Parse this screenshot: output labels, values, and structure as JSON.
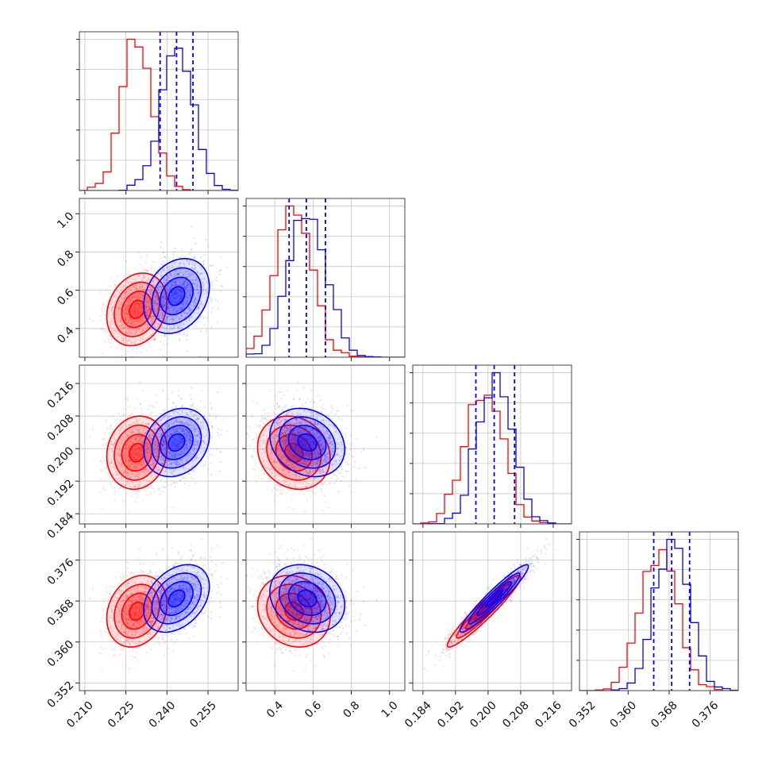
{
  "chart_data": {
    "type": "corner",
    "description_free": true,
    "parameters": [
      {
        "range": [
          0.208,
          0.266
        ],
        "ticks": [
          0.21,
          0.225,
          0.24,
          0.255
        ],
        "tick_labels": [
          "0.210",
          "0.225",
          "0.240",
          "0.255"
        ]
      },
      {
        "range": [
          0.25,
          1.08
        ],
        "ticks": [
          0.4,
          0.6,
          0.8,
          1.0
        ],
        "tick_labels": [
          "0.4",
          "0.6",
          "0.8",
          "1.0"
        ]
      },
      {
        "range": [
          0.1815,
          0.2205
        ],
        "ticks": [
          0.184,
          0.192,
          0.2,
          0.208,
          0.216
        ],
        "tick_labels": [
          "0.184",
          "0.192",
          "0.200",
          "0.208",
          "0.216"
        ]
      },
      {
        "range": [
          0.3505,
          0.3815
        ],
        "ticks": [
          0.352,
          0.36,
          0.368,
          0.376
        ],
        "tick_labels": [
          "0.352",
          "0.360",
          "0.368",
          "0.376"
        ]
      }
    ],
    "series": [
      {
        "color": "#ff0000",
        "mean": [
          0.229,
          0.5,
          0.199,
          0.366
        ],
        "sd": [
          0.0055,
          0.095,
          0.0045,
          0.0035
        ],
        "correlation": [
          [
            1.0,
            0.2,
            0.1,
            0.2
          ],
          [
            0.2,
            1.0,
            -0.15,
            -0.15
          ],
          [
            0.1,
            -0.15,
            1.0,
            0.95
          ],
          [
            0.2,
            -0.15,
            0.95,
            1.0
          ]
        ]
      },
      {
        "color": "#0000ff",
        "mean": [
          0.2435,
          0.57,
          0.2015,
          0.3685
        ],
        "sd": [
          0.006,
          0.098,
          0.0042,
          0.0033
        ],
        "correlation": [
          [
            1.0,
            0.25,
            0.2,
            0.35
          ],
          [
            0.25,
            1.0,
            -0.2,
            -0.2
          ],
          [
            0.2,
            -0.2,
            1.0,
            0.95
          ],
          [
            0.35,
            -0.2,
            0.95,
            1.0
          ]
        ]
      }
    ],
    "quantile_lines": {
      "color": "#0000ff",
      "style": "dashed",
      "values": [
        [
          0.2375,
          0.2435,
          0.2495
        ],
        [
          0.475,
          0.565,
          0.665
        ],
        [
          0.197,
          0.2015,
          0.2065
        ],
        [
          0.365,
          0.3685,
          0.372
        ]
      ]
    },
    "histogram_bins": 20,
    "contour_levels": [
      "0.5",
      "1.0",
      "1.5",
      "2.0"
    ],
    "grid": true,
    "legend": "none"
  }
}
